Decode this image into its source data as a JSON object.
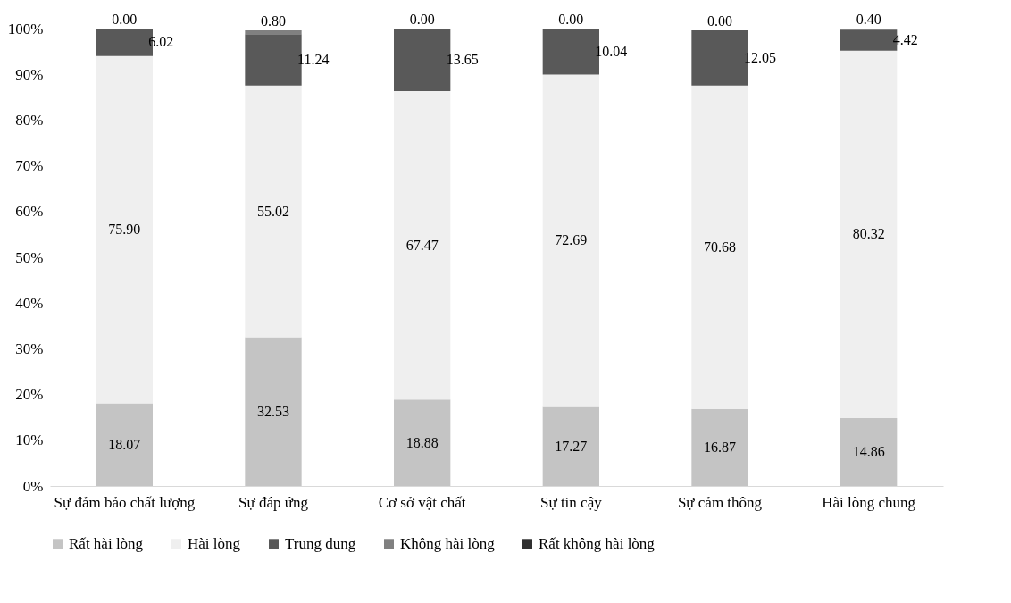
{
  "chart_data": {
    "type": "bar",
    "stacked": true,
    "categories": [
      "Sự đảm bảo chất lượng",
      "Sự đáp ứng",
      "Cơ sở vật chất",
      "Sự tin cậy",
      "Sự cảm thông",
      "Hài lòng chung"
    ],
    "series": [
      {
        "name": "Rất hài lòng",
        "color": "#c4c4c4",
        "values": [
          18.07,
          32.53,
          18.88,
          17.27,
          16.87,
          14.86
        ],
        "value_labels": [
          "18.07",
          "32.53",
          "18.88",
          "17.27",
          "16.87",
          "14.86"
        ]
      },
      {
        "name": "Hài lòng",
        "color": "#efefef",
        "values": [
          75.9,
          55.02,
          67.47,
          72.69,
          70.68,
          80.32
        ],
        "value_labels": [
          "75.90",
          "55.02",
          "67.47",
          "72.69",
          "70.68",
          "80.32"
        ]
      },
      {
        "name": "Trung dung",
        "color": "#595959",
        "values": [
          6.02,
          11.24,
          13.65,
          10.04,
          12.05,
          4.42
        ],
        "value_labels": [
          "6.02",
          "11.24",
          "13.65",
          "10.04",
          "12.05",
          "4.42"
        ]
      },
      {
        "name": "Không hài lòng",
        "color": "#808080",
        "values": [
          0,
          0.8,
          0,
          0,
          0,
          0.4
        ],
        "value_labels": [
          "0.00",
          "0.80",
          "0.00",
          "0.00",
          "0.00",
          "0.40"
        ]
      },
      {
        "name": "Rất không hài lòng",
        "color": "#303030",
        "values": [
          null,
          null,
          null,
          null,
          null,
          null
        ]
      }
    ],
    "ylim": [
      0,
      100
    ],
    "yticks": [
      {
        "value": 0,
        "label": "0%"
      },
      {
        "value": 10,
        "label": "10%"
      },
      {
        "value": 20,
        "label": "20%"
      },
      {
        "value": 30,
        "label": "30%"
      },
      {
        "value": 40,
        "label": "40%"
      },
      {
        "value": 50,
        "label": "50%"
      },
      {
        "value": 60,
        "label": "60%"
      },
      {
        "value": 70,
        "label": "70%"
      },
      {
        "value": 80,
        "label": "80%"
      },
      {
        "value": 90,
        "label": "90%"
      },
      {
        "value": 100,
        "label": "100%"
      }
    ],
    "grid": false,
    "legend": "bottom"
  }
}
